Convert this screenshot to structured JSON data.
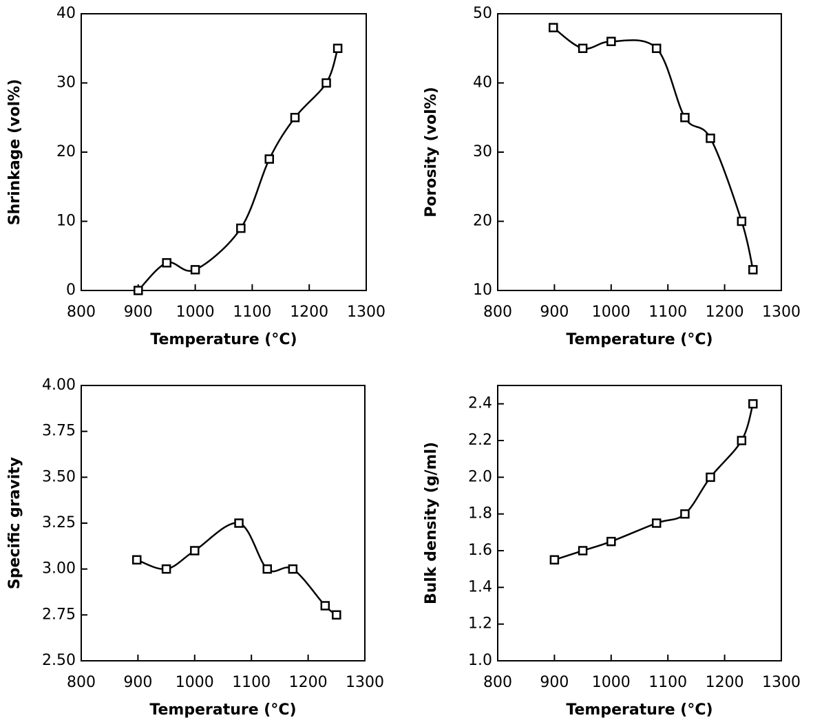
{
  "chart_data": [
    {
      "type": "line",
      "xlabel": "Temperature (°C)",
      "ylabel": "Shrinkage (vol%)",
      "x": [
        900,
        950,
        1000,
        1080,
        1130,
        1175,
        1230,
        1250
      ],
      "values": [
        0,
        4,
        3,
        9,
        19,
        25,
        30,
        35
      ],
      "color": "#000000",
      "xlim": [
        800,
        1300
      ],
      "xticks": [
        800,
        900,
        1000,
        1100,
        1200,
        1300
      ],
      "ylim": [
        0,
        40
      ],
      "yticks": [
        0,
        10,
        20,
        30,
        40
      ]
    },
    {
      "type": "line",
      "xlabel": "Temperature (°C)",
      "ylabel": "Porosity (vol%)",
      "x": [
        898,
        950,
        1000,
        1080,
        1130,
        1175,
        1230,
        1250
      ],
      "values": [
        48,
        45,
        46,
        45,
        35,
        32,
        20,
        13
      ],
      "color": "#000000",
      "xlim": [
        800,
        1300
      ],
      "xticks": [
        800,
        900,
        1000,
        1100,
        1200,
        1300
      ],
      "ylim": [
        10,
        50
      ],
      "yticks": [
        10,
        20,
        30,
        40,
        50
      ]
    },
    {
      "type": "line",
      "xlabel": "Temperature (°C)",
      "ylabel": "Specific gravity",
      "x": [
        898,
        950,
        1000,
        1078,
        1128,
        1173,
        1230,
        1250
      ],
      "values": [
        3.05,
        3.0,
        3.1,
        3.25,
        3.0,
        3.0,
        2.8,
        2.75
      ],
      "color": "#000000",
      "xlim": [
        800,
        1300
      ],
      "xticks": [
        800,
        900,
        1000,
        1100,
        1200,
        1300
      ],
      "ylim": [
        2.5,
        4.0
      ],
      "yticks": [
        {
          "value": 2.5,
          "label": "2.50"
        },
        2.75,
        {
          "value": 3,
          "label": "3.00"
        },
        3.25,
        {
          "value": 3.5,
          "label": "3.50"
        },
        3.75,
        {
          "value": 4,
          "label": "4.00"
        }
      ]
    },
    {
      "type": "line",
      "xlabel": "Temperature (°C)",
      "ylabel": "Bulk density (g/ml)",
      "x": [
        900,
        950,
        1000,
        1080,
        1130,
        1175,
        1230,
        1250
      ],
      "values": [
        1.55,
        1.6,
        1.65,
        1.75,
        1.8,
        2.0,
        2.2,
        2.4
      ],
      "color": "#000000",
      "xlim": [
        800,
        1300
      ],
      "xticks": [
        800,
        900,
        1000,
        1100,
        1200,
        1300
      ],
      "ylim": [
        1.0,
        2.5
      ],
      "yticks": [
        {
          "value": 1,
          "label": "1.0"
        },
        1.2,
        1.4,
        1.6,
        1.8,
        {
          "value": 2,
          "label": "2.0"
        },
        2.2,
        2.4
      ]
    }
  ]
}
